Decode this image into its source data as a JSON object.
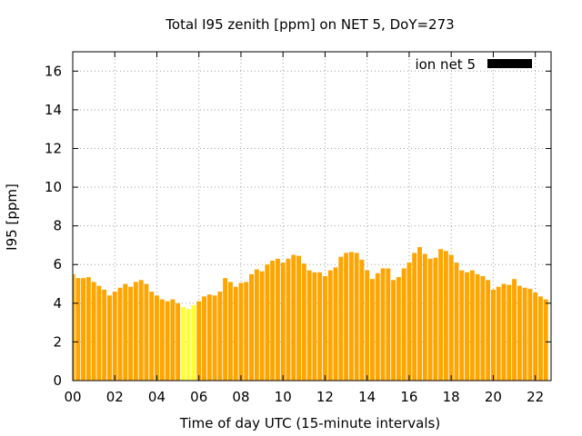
{
  "chart_data": {
    "type": "bar",
    "title": "Total I95 zenith [ppm] on NET 5, DoY=273",
    "xlabel": "Time of day UTC (15-minute intervals)",
    "ylabel": "I95 [ppm]",
    "ylim": [
      0,
      17
    ],
    "xlim": [
      0,
      22.75
    ],
    "xticks": [
      "00",
      "02",
      "04",
      "06",
      "08",
      "10",
      "12",
      "14",
      "16",
      "18",
      "20",
      "22"
    ],
    "yticks": [
      "0",
      "2",
      "4",
      "6",
      "8",
      "10",
      "12",
      "14",
      "16"
    ],
    "grid": true,
    "legend": {
      "position": "top-right",
      "entries": [
        {
          "label": "ion net 5",
          "color": "#000000"
        }
      ]
    },
    "bar_color": "#ffa500",
    "highlight_color": "#ffff33",
    "interval_hours": 0.25,
    "highlighted_indices": [
      21,
      22,
      23
    ],
    "values": [
      5.5,
      5.3,
      5.3,
      5.35,
      5.1,
      4.9,
      4.7,
      4.4,
      4.6,
      4.8,
      5.0,
      4.85,
      5.1,
      5.2,
      5.0,
      4.6,
      4.4,
      4.2,
      4.1,
      4.2,
      4.0,
      3.8,
      3.7,
      3.9,
      4.1,
      4.35,
      4.45,
      4.4,
      4.6,
      5.3,
      5.1,
      4.85,
      5.05,
      5.1,
      5.5,
      5.75,
      5.65,
      6.0,
      6.2,
      6.3,
      6.1,
      6.3,
      6.5,
      6.45,
      6.05,
      5.7,
      5.6,
      5.6,
      5.4,
      5.7,
      5.85,
      6.4,
      6.6,
      6.65,
      6.6,
      6.25,
      5.7,
      5.25,
      5.55,
      5.8,
      5.8,
      5.2,
      5.35,
      5.8,
      6.1,
      6.6,
      6.9,
      6.55,
      6.3,
      6.35,
      6.8,
      6.7,
      6.5,
      6.1,
      5.7,
      5.6,
      5.7,
      5.5,
      5.4,
      5.2,
      4.7,
      4.85,
      5.0,
      4.95,
      5.25,
      4.9,
      4.8,
      4.75,
      4.55,
      4.35,
      4.2
    ]
  }
}
